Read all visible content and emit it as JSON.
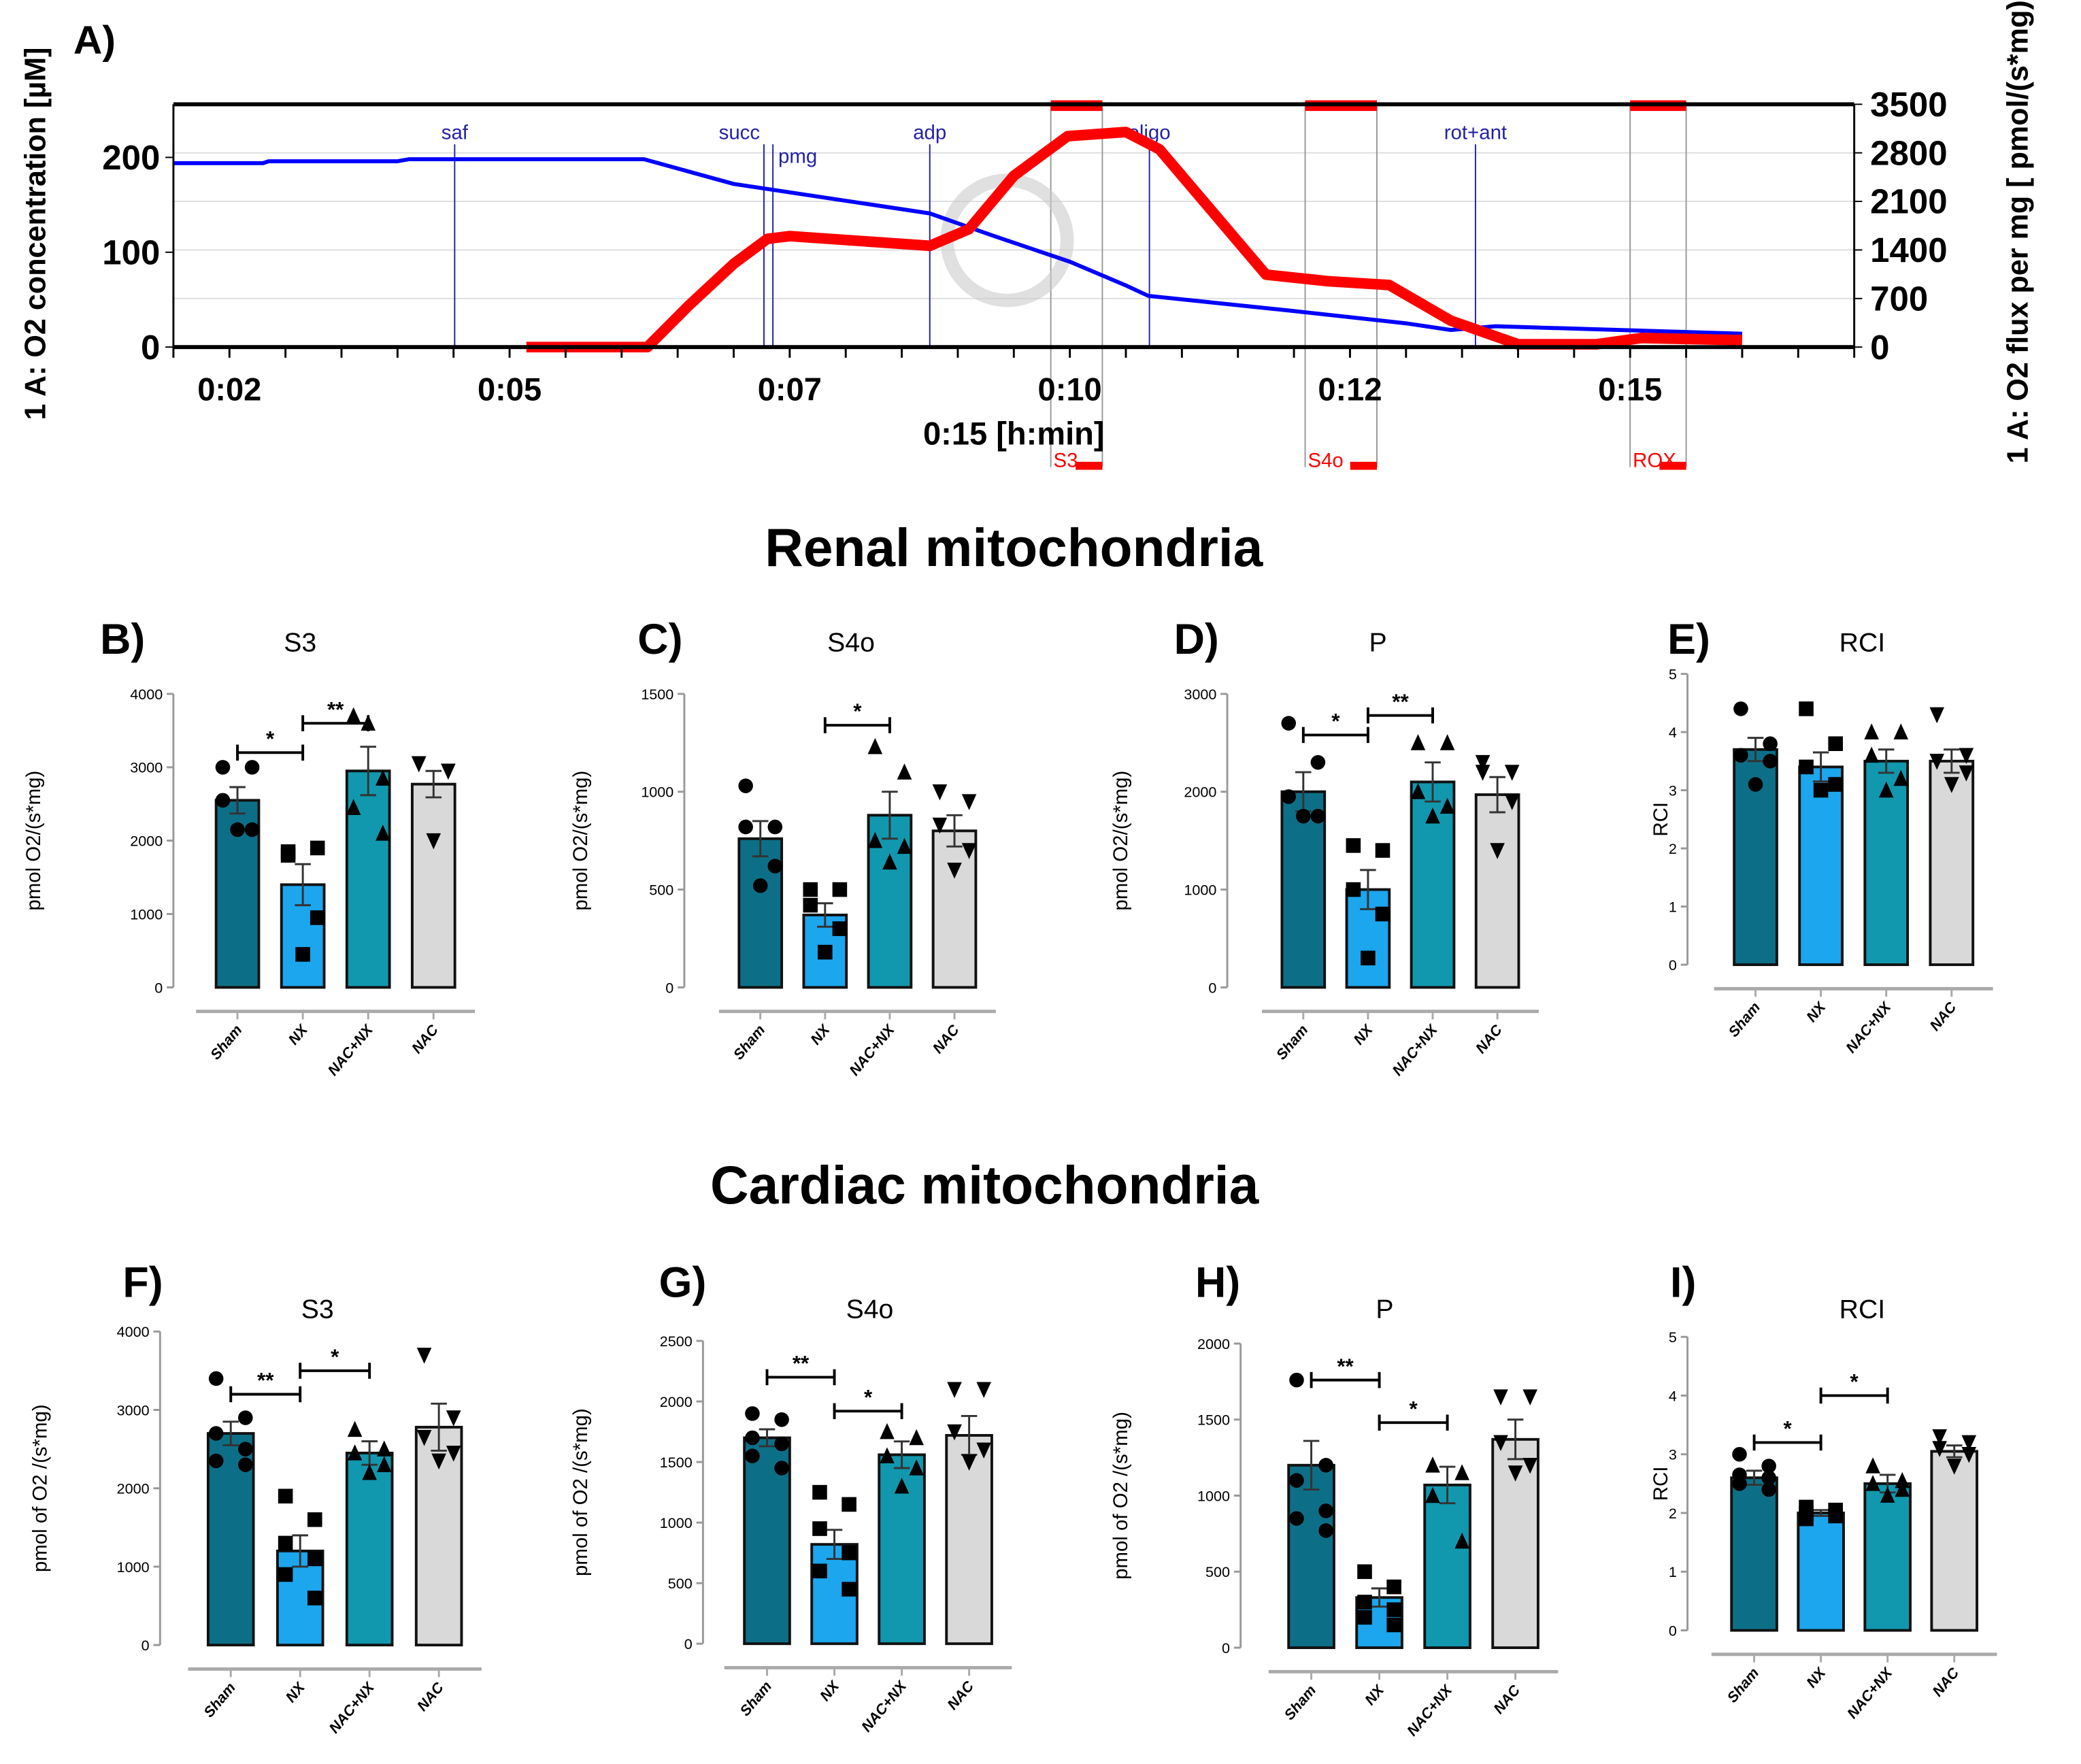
{
  "figure": {
    "section_titles": [
      "Renal mitochondria",
      "Cardiac mitochondria"
    ],
    "group_colors": {
      "Sham": "#0d6f87",
      "NX": "#1ca6ee",
      "NAC+NX": "#1198ae",
      "NAC": "#d9d9d9"
    }
  },
  "chart_data": [
    {
      "panel": "A)",
      "type": "line",
      "xlabel": "0:15 [h:min]",
      "ylabel_left": "1 A: O2 concentration [µM]",
      "ylabel_right": "1 A: O2 flux per mg [ pmol/(s*mg)]",
      "x_ticks": [
        {
          "v": 2.5,
          "label": "0:02"
        },
        {
          "v": 5,
          "label": "0:05"
        },
        {
          "v": 7.5,
          "label": "0:07"
        },
        {
          "v": 10,
          "label": "0:10"
        },
        {
          "v": 12.5,
          "label": "0:12"
        },
        {
          "v": 15,
          "label": "0:15"
        }
      ],
      "xlim": [
        2.0,
        17.0
      ],
      "ylim_left": [
        0,
        256
      ],
      "ylim_right": [
        0,
        3500
      ],
      "y_ticks_left": [
        0,
        100,
        200
      ],
      "y_ticks_right": [
        0,
        700,
        1400,
        2100,
        2800,
        3500
      ],
      "series": [
        {
          "name": "O2 concentration",
          "axis": "left",
          "color": "#0000ff",
          "x": [
            2.0,
            2.8,
            2.85,
            4.0,
            4.1,
            6.2,
            7.0,
            8.75,
            9.3,
            10.0,
            10.5,
            10.7,
            12.0,
            13.0,
            13.4,
            13.6,
            13.8,
            16.0
          ],
          "y": [
            194,
            194,
            196,
            196,
            198,
            198,
            172,
            141,
            118,
            90,
            65,
            54,
            38,
            25,
            18,
            20,
            22,
            14
          ]
        },
        {
          "name": "O2 flux per mass",
          "axis": "right",
          "color": "#ff0000",
          "x": [
            5.15,
            6.23,
            6.6,
            7.0,
            7.3,
            7.5,
            8.75,
            9.1,
            9.5,
            9.98,
            10.5,
            10.8,
            11.3,
            11.75,
            12.3,
            12.85,
            13.4,
            14.0,
            14.7,
            15.1,
            16.0
          ],
          "y": [
            0,
            0,
            600,
            1200,
            1560,
            1600,
            1460,
            1700,
            2470,
            3040,
            3100,
            2850,
            1900,
            1045,
            950,
            895,
            380,
            40,
            40,
            130,
            100
          ]
        }
      ],
      "events": [
        {
          "label": "saf",
          "t": 4.51
        },
        {
          "label": "succ",
          "t": 7.27
        },
        {
          "label": "pmg",
          "t": 7.35
        },
        {
          "label": "adp",
          "t": 8.75
        },
        {
          "label": "oligo",
          "t": 10.71
        },
        {
          "label": "rot+ant",
          "t": 13.62
        }
      ],
      "marks": [
        {
          "label": "S3",
          "t0": 9.83,
          "t1": 10.29
        },
        {
          "label": "S4o",
          "t0": 12.1,
          "t1": 12.74
        },
        {
          "label": "ROX",
          "t0": 15.0,
          "t1": 15.5
        }
      ]
    },
    {
      "panel": "B)",
      "title": "S3",
      "type": "bar",
      "ylabel": "pmol O2/(s*mg)",
      "ylim": [
        0,
        4000
      ],
      "y_ticks": [
        0,
        1000,
        2000,
        3000,
        4000
      ],
      "categories": [
        "Sham",
        "NX",
        "NAC+NX",
        "NAC"
      ],
      "values": [
        2550,
        1400,
        2950,
        2770
      ],
      "sem": [
        180,
        280,
        330,
        180
      ],
      "points": [
        [
          3000,
          3000,
          2550,
          2150,
          2150
        ],
        [
          1850,
          1900,
          1800,
          950,
          450
        ],
        [
          3700,
          2850,
          2450,
          2100,
          3600
        ],
        [
          3050,
          2950,
          3050,
          2950,
          2000
        ]
      ],
      "significance": [
        {
          "from": 0,
          "to": 1,
          "label": "*",
          "y": 3200
        },
        {
          "from": 1,
          "to": 2,
          "label": "**",
          "y": 3600
        }
      ]
    },
    {
      "panel": "C)",
      "title": "S4o",
      "type": "bar",
      "ylabel": "pmol O2/(s*mg)",
      "ylim": [
        0,
        1500
      ],
      "y_ticks": [
        0,
        500,
        1000,
        1500
      ],
      "categories": [
        "Sham",
        "NX",
        "NAC+NX",
        "NAC"
      ],
      "values": [
        760,
        370,
        880,
        800
      ],
      "sem": [
        90,
        60,
        120,
        80
      ],
      "points": [
        [
          1030,
          820,
          820,
          620,
          520
        ],
        [
          500,
          500,
          420,
          300,
          180
        ],
        [
          1230,
          1100,
          750,
          720,
          640
        ],
        [
          1000,
          950,
          830,
          700,
          600
        ]
      ],
      "significance": [
        {
          "from": 1,
          "to": 2,
          "label": "*",
          "y": 1340
        }
      ]
    },
    {
      "panel": "D)",
      "title": "P",
      "type": "bar",
      "ylabel": "pmol O2/(s*mg)",
      "ylim": [
        0,
        3000
      ],
      "y_ticks": [
        0,
        1000,
        2000,
        3000
      ],
      "categories": [
        "Sham",
        "NX",
        "NAC+NX",
        "NAC"
      ],
      "values": [
        2000,
        1000,
        2100,
        1970
      ],
      "sem": [
        200,
        200,
        200,
        180
      ],
      "points": [
        [
          2700,
          2300,
          1950,
          1750,
          1750
        ],
        [
          1450,
          1400,
          1000,
          750,
          300
        ],
        [
          2500,
          2500,
          2000,
          1850,
          1750
        ],
        [
          2300,
          2200,
          2200,
          1900,
          1400
        ]
      ],
      "significance": [
        {
          "from": 0,
          "to": 1,
          "label": "*",
          "y": 2580
        },
        {
          "from": 1,
          "to": 2,
          "label": "**",
          "y": 2780
        }
      ]
    },
    {
      "panel": "E)",
      "title": "RCI",
      "type": "bar",
      "ylabel": "RCI",
      "ylim": [
        0,
        5
      ],
      "y_ticks": [
        0,
        1,
        2,
        3,
        4,
        5
      ],
      "categories": [
        "Sham",
        "NX",
        "NAC+NX",
        "NAC"
      ],
      "values": [
        3.7,
        3.4,
        3.5,
        3.5
      ],
      "sem": [
        0.2,
        0.25,
        0.2,
        0.2
      ],
      "points": [
        [
          4.4,
          3.8,
          3.6,
          3.5,
          3.1
        ],
        [
          4.4,
          3.8,
          3.4,
          3.1,
          3.0
        ],
        [
          4.0,
          4.0,
          3.6,
          3.2,
          3.0
        ],
        [
          4.3,
          3.6,
          3.5,
          3.3,
          3.1
        ]
      ],
      "significance": []
    },
    {
      "panel": "F)",
      "title": "S3",
      "type": "bar",
      "ylabel": "pmol of O2 /(s*mg)",
      "ylim": [
        0,
        4000
      ],
      "y_ticks": [
        0,
        1000,
        2000,
        3000,
        4000
      ],
      "categories": [
        "Sham",
        "NX",
        "NAC+NX",
        "NAC"
      ],
      "values": [
        2700,
        1200,
        2450,
        2780
      ],
      "sem": [
        150,
        200,
        150,
        300
      ],
      "points": [
        [
          3400,
          2900,
          2700,
          2500,
          2350,
          2300
        ],
        [
          1900,
          1600,
          1300,
          1100,
          900,
          600
        ],
        [
          2750,
          2500,
          2450,
          2300,
          2200
        ],
        [
          3700,
          2900,
          2650,
          2450,
          2350
        ]
      ],
      "significance": [
        {
          "from": 0,
          "to": 1,
          "label": "**",
          "y": 3200
        },
        {
          "from": 1,
          "to": 2,
          "label": "*",
          "y": 3500
        }
      ]
    },
    {
      "panel": "G)",
      "title": "S4o",
      "type": "bar",
      "ylabel": "pmol of O2 /(s*mg)",
      "ylim": [
        0,
        2500
      ],
      "y_ticks": [
        0,
        500,
        1000,
        1500,
        2000,
        2500
      ],
      "categories": [
        "Sham",
        "NX",
        "NAC+NX",
        "NAC"
      ],
      "values": [
        1700,
        820,
        1560,
        1720
      ],
      "sem": [
        70,
        120,
        110,
        160
      ],
      "points": [
        [
          1900,
          1850,
          1700,
          1650,
          1550,
          1450
        ],
        [
          1250,
          1150,
          950,
          750,
          600,
          450
        ],
        [
          1750,
          1700,
          1550,
          1450,
          1300
        ],
        [
          2100,
          2100,
          1750,
          1600,
          1500
        ]
      ],
      "significance": [
        {
          "from": 0,
          "to": 1,
          "label": "**",
          "y": 2200
        },
        {
          "from": 1,
          "to": 2,
          "label": "*",
          "y": 1920
        }
      ]
    },
    {
      "panel": "H)",
      "title": "P",
      "type": "bar",
      "ylabel": "pmol of O2 /(s*mg)",
      "ylim": [
        0,
        2000
      ],
      "y_ticks": [
        0,
        500,
        1000,
        1500,
        2000
      ],
      "categories": [
        "Sham",
        "NX",
        "NAC+NX",
        "NAC"
      ],
      "values": [
        1200,
        330,
        1070,
        1370
      ],
      "sem": [
        160,
        60,
        120,
        130
      ],
      "points": [
        [
          1760,
          1200,
          1100,
          900,
          850,
          770
        ],
        [
          500,
          400,
          300,
          250,
          200,
          150
        ],
        [
          1200,
          1150,
          1000,
          700
        ],
        [
          1650,
          1650,
          1350,
          1200,
          1150
        ]
      ],
      "significance": [
        {
          "from": 0,
          "to": 1,
          "label": "**",
          "y": 1760
        },
        {
          "from": 1,
          "to": 2,
          "label": "*",
          "y": 1480
        }
      ]
    },
    {
      "panel": "I)",
      "title": "RCI",
      "type": "bar",
      "ylabel": "RCI",
      "ylim": [
        0,
        5
      ],
      "y_ticks": [
        0,
        1,
        2,
        3,
        4,
        5
      ],
      "categories": [
        "Sham",
        "NX",
        "NAC+NX",
        "NAC"
      ],
      "values": [
        2.6,
        2.0,
        2.5,
        3.05
      ],
      "sem": [
        0.12,
        0.05,
        0.15,
        0.1
      ],
      "points": [
        [
          3.0,
          2.8,
          2.65,
          2.6,
          2.5,
          2.4
        ],
        [
          2.1,
          2.05,
          2.0,
          1.95,
          1.9,
          1.95
        ],
        [
          2.8,
          2.55,
          2.5,
          2.4,
          2.3
        ],
        [
          3.3,
          3.2,
          3.1,
          3.0,
          2.8
        ]
      ],
      "significance": [
        {
          "from": 0,
          "to": 1,
          "label": "*",
          "y": 3.2
        },
        {
          "from": 1,
          "to": 2,
          "label": "*",
          "y": 4.0
        }
      ]
    }
  ]
}
